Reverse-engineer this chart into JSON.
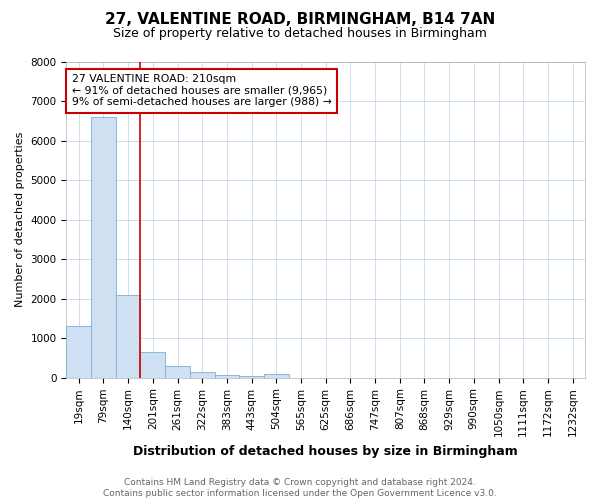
{
  "title": "27, VALENTINE ROAD, BIRMINGHAM, B14 7AN",
  "subtitle": "Size of property relative to detached houses in Birmingham",
  "xlabel": "Distribution of detached houses by size in Birmingham",
  "ylabel": "Number of detached properties",
  "categories": [
    "19sqm",
    "79sqm",
    "140sqm",
    "201sqm",
    "261sqm",
    "322sqm",
    "383sqm",
    "443sqm",
    "504sqm",
    "565sqm",
    "625sqm",
    "686sqm",
    "747sqm",
    "807sqm",
    "868sqm",
    "929sqm",
    "990sqm",
    "1050sqm",
    "1111sqm",
    "1172sqm",
    "1232sqm"
  ],
  "values": [
    1300,
    6600,
    2100,
    650,
    300,
    140,
    75,
    40,
    100,
    0,
    0,
    0,
    0,
    0,
    0,
    0,
    0,
    0,
    0,
    0,
    0
  ],
  "bar_color": "#cfe0f3",
  "bar_edge_color": "#7bafd4",
  "vline_x": 2.5,
  "vline_color": "#cc0000",
  "annotation_text": "27 VALENTINE ROAD: 210sqm\n← 91% of detached houses are smaller (9,965)\n9% of semi-detached houses are larger (988) →",
  "annotation_box_color": "#cc0000",
  "ylim": [
    0,
    8000
  ],
  "yticks": [
    0,
    1000,
    2000,
    3000,
    4000,
    5000,
    6000,
    7000,
    8000
  ],
  "footer": "Contains HM Land Registry data © Crown copyright and database right 2024.\nContains public sector information licensed under the Open Government Licence v3.0.",
  "bg_color": "#ffffff",
  "grid_color": "#c5d8ee",
  "title_fontsize": 11,
  "subtitle_fontsize": 9,
  "xlabel_fontsize": 9,
  "ylabel_fontsize": 8,
  "tick_fontsize": 7.5,
  "footer_fontsize": 6.5
}
